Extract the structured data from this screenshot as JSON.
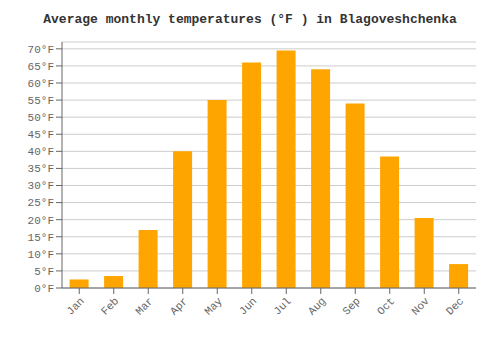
{
  "chart_data": {
    "type": "bar",
    "title": "Average monthly temperatures (°F ) in Blagoveshchenka",
    "categories": [
      "Jan",
      "Feb",
      "Mar",
      "Apr",
      "May",
      "Jun",
      "Jul",
      "Aug",
      "Sep",
      "Oct",
      "Nov",
      "Dec"
    ],
    "values": [
      2.5,
      3.5,
      17,
      40,
      55,
      66,
      69.5,
      64,
      54,
      38.5,
      20.5,
      7
    ],
    "color": "#FFA500",
    "ylim": [
      0,
      72
    ],
    "yticks": [
      {
        "value": 0,
        "label": "0°F"
      },
      {
        "value": 5,
        "label": "5°F"
      },
      {
        "value": 10,
        "label": "10°F"
      },
      {
        "value": 15,
        "label": "15°F"
      },
      {
        "value": 20,
        "label": "20°F"
      },
      {
        "value": 25,
        "label": "25°F"
      },
      {
        "value": 30,
        "label": "30°F"
      },
      {
        "value": 35,
        "label": "35°F"
      },
      {
        "value": 40,
        "label": "40°F"
      },
      {
        "value": 45,
        "label": "45°F"
      },
      {
        "value": 50,
        "label": "50°F"
      },
      {
        "value": 55,
        "label": "55°F"
      },
      {
        "value": 60,
        "label": "60°F"
      },
      {
        "value": 65,
        "label": "65°F"
      },
      {
        "value": 70,
        "label": "70°F"
      }
    ],
    "grid": true
  }
}
